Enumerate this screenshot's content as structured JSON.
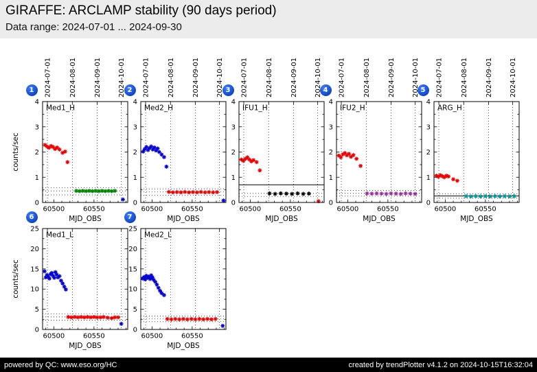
{
  "header": {
    "title": "GIRAFFE: ARCLAMP stability (90 days period)",
    "subtitle": "Data range: 2024-07-01 ... 2024-09-30"
  },
  "footer": {
    "powered_prefix": "powered by QC: ",
    "qc_link": "www.eso.org/HC",
    "created": "created by trendPlotter v4.1.2 on 2024-10-15T16:32:04"
  },
  "colors": {
    "badge_blue": "#0033aa",
    "red": "#e60000",
    "green": "#008000",
    "blue": "#0000cd",
    "black": "#000000",
    "purple": "#993399",
    "cyan": "#009999"
  },
  "axes_common": {
    "xlabel": "MJD_OBS",
    "ylabel": "counts/sec",
    "xlim": [
      60486,
      60592
    ],
    "xticks": [
      60500,
      60550
    ],
    "grid": "dotted vertical lines at month starts, dotted horizontal control limits"
  },
  "date_ticks": [
    {
      "label": "2024-07-01",
      "mjd": 60492
    },
    {
      "label": "2024-08-01",
      "mjd": 60523
    },
    {
      "label": "2024-09-01",
      "mjd": 60554
    },
    {
      "label": "2024-10-01",
      "mjd": 60584
    }
  ],
  "chart_data": [
    {
      "number": 1,
      "row": 1,
      "col": 1,
      "type": "scatter",
      "title": "Med1_H",
      "show_ylabel": true,
      "show_date_labels": true,
      "ylim": [
        0,
        4
      ],
      "yticks": [
        0,
        1,
        2,
        3,
        4
      ],
      "ref_lines_dashed": [
        0.3,
        0.46,
        0.58
      ],
      "ref_lines_solid": [],
      "series": [
        {
          "name": "red-declining",
          "color": "#e60000",
          "points": [
            [
              60489,
              2.28
            ],
            [
              60491.5,
              2.22
            ],
            [
              60494,
              2.17
            ],
            [
              60496.5,
              2.24
            ],
            [
              60499,
              2.2
            ],
            [
              60501.5,
              2.12
            ],
            [
              60504,
              2.18
            ],
            [
              60507,
              2.1
            ],
            [
              60511,
              1.97
            ],
            [
              60514,
              2.02
            ],
            [
              60517,
              1.6
            ]
          ]
        },
        {
          "name": "green-stable",
          "color": "#008000",
          "points": [
            [
              60528,
              0.46
            ],
            [
              60532,
              0.45
            ],
            [
              60536,
              0.46
            ],
            [
              60540,
              0.45
            ],
            [
              60544,
              0.46
            ],
            [
              60548,
              0.45
            ],
            [
              60552,
              0.46
            ],
            [
              60556,
              0.45
            ],
            [
              60560,
              0.46
            ],
            [
              60564,
              0.45
            ],
            [
              60568,
              0.46
            ],
            [
              60572,
              0.45
            ],
            [
              60576,
              0.46
            ]
          ]
        },
        {
          "name": "blue-outlier",
          "color": "#0000cd",
          "points": [
            [
              60586,
              0.12
            ]
          ]
        }
      ]
    },
    {
      "number": 2,
      "row": 1,
      "col": 2,
      "type": "scatter",
      "title": "Med2_H",
      "show_ylabel": false,
      "show_date_labels": true,
      "ylim": [
        0,
        4
      ],
      "yticks": [
        0,
        1,
        2,
        3,
        4
      ],
      "ref_lines_dashed": [
        0.28,
        0.42,
        0.54
      ],
      "ref_lines_solid": [],
      "series": [
        {
          "name": "blue-declining",
          "color": "#0000cd",
          "points": [
            [
              60489,
              2.02
            ],
            [
              60491,
              2.12
            ],
            [
              60493,
              2.2
            ],
            [
              60495,
              2.08
            ],
            [
              60497,
              2.16
            ],
            [
              60499,
              2.22
            ],
            [
              60501,
              2.1
            ],
            [
              60503,
              2.18
            ],
            [
              60505,
              2.06
            ],
            [
              60507,
              2.14
            ],
            [
              60509,
              2.0
            ],
            [
              60512,
              1.9
            ],
            [
              60515,
              1.8
            ],
            [
              60518,
              1.42
            ]
          ]
        },
        {
          "name": "red-stable",
          "color": "#e60000",
          "points": [
            [
              60521,
              0.42
            ],
            [
              60526,
              0.4
            ],
            [
              60531,
              0.41
            ],
            [
              60536,
              0.4
            ],
            [
              60541,
              0.42
            ],
            [
              60546,
              0.4
            ],
            [
              60551,
              0.41
            ],
            [
              60556,
              0.4
            ],
            [
              60561,
              0.42
            ],
            [
              60566,
              0.4
            ],
            [
              60571,
              0.41
            ],
            [
              60576,
              0.4
            ],
            [
              60581,
              0.41
            ]
          ]
        },
        {
          "name": "blue-outlier",
          "color": "#0000cd",
          "points": [
            [
              60589,
              0.08
            ]
          ]
        }
      ]
    },
    {
      "number": 3,
      "row": 1,
      "col": 3,
      "type": "scatter",
      "title": "IFU1_H",
      "show_ylabel": false,
      "show_date_labels": true,
      "ylim": [
        0,
        4
      ],
      "yticks": [
        0,
        1,
        2,
        3,
        4
      ],
      "ref_lines_dashed": [
        0.24,
        0.36
      ],
      "ref_lines_solid": [
        0.7
      ],
      "series": [
        {
          "name": "red-declining",
          "color": "#e60000",
          "points": [
            [
              60489,
              1.7
            ],
            [
              60491.5,
              1.65
            ],
            [
              60494,
              1.73
            ],
            [
              60496.5,
              1.79
            ],
            [
              60499,
              1.7
            ],
            [
              60501.5,
              1.63
            ],
            [
              60504,
              1.68
            ],
            [
              60508,
              1.6
            ],
            [
              60512,
              1.27
            ]
          ]
        },
        {
          "name": "black-stable",
          "color": "#000000",
          "points": [
            [
              60524,
              0.36
            ],
            [
              60531,
              0.34
            ],
            [
              60538,
              0.36
            ],
            [
              60545,
              0.35
            ],
            [
              60552,
              0.34
            ],
            [
              60559,
              0.36
            ],
            [
              60566,
              0.34
            ],
            [
              60573,
              0.35
            ]
          ]
        },
        {
          "name": "red-outlier",
          "color": "#e60000",
          "points": [
            [
              60585,
              0.05
            ]
          ]
        }
      ]
    },
    {
      "number": 4,
      "row": 1,
      "col": 4,
      "type": "scatter",
      "title": "IFU2_H",
      "show_ylabel": false,
      "show_date_labels": true,
      "ylim": [
        0,
        4
      ],
      "yticks": [
        0,
        1,
        2,
        3,
        4
      ],
      "ref_lines_dashed": [
        0.25,
        0.36,
        0.47
      ],
      "ref_lines_solid": [],
      "series": [
        {
          "name": "red-declining",
          "color": "#e60000",
          "points": [
            [
              60489,
              1.86
            ],
            [
              60491.5,
              1.79
            ],
            [
              60494,
              1.91
            ],
            [
              60496.5,
              1.96
            ],
            [
              60499,
              1.87
            ],
            [
              60501.5,
              1.93
            ],
            [
              60504,
              1.81
            ],
            [
              60507,
              1.88
            ],
            [
              60511,
              1.73
            ],
            [
              60516,
              1.45
            ]
          ]
        },
        {
          "name": "purple-stable",
          "color": "#993399",
          "points": [
            [
              60524,
              0.36
            ],
            [
              60530,
              0.35
            ],
            [
              60536,
              0.36
            ],
            [
              60542,
              0.35
            ],
            [
              60548,
              0.34
            ],
            [
              60554,
              0.36
            ],
            [
              60560,
              0.35
            ],
            [
              60566,
              0.34
            ],
            [
              60572,
              0.36
            ],
            [
              60578,
              0.35
            ],
            [
              60584,
              0.34
            ]
          ]
        }
      ]
    },
    {
      "number": 5,
      "row": 1,
      "col": 5,
      "type": "scatter",
      "title": "ARG_H",
      "show_ylabel": false,
      "show_date_labels": true,
      "ylim": [
        0,
        4
      ],
      "yticks": [
        0,
        1,
        2,
        3,
        4
      ],
      "ref_lines_dashed": [
        0.17,
        0.34
      ],
      "ref_lines_solid": [
        0.26
      ],
      "series": [
        {
          "name": "red-declining",
          "color": "#e60000",
          "points": [
            [
              60489,
              1.06
            ],
            [
              60491.5,
              1.02
            ],
            [
              60494,
              1.08
            ],
            [
              60496.5,
              1.04
            ],
            [
              60499,
              1.0
            ],
            [
              60501.5,
              1.06
            ],
            [
              60504,
              1.03
            ],
            [
              60510,
              0.92
            ],
            [
              60515,
              0.86
            ]
          ]
        },
        {
          "name": "cyan-stable",
          "color": "#009999",
          "points": [
            [
              60526,
              0.25
            ],
            [
              60532,
              0.24
            ],
            [
              60538,
              0.25
            ],
            [
              60544,
              0.24
            ],
            [
              60550,
              0.25
            ],
            [
              60556,
              0.24
            ],
            [
              60562,
              0.25
            ],
            [
              60568,
              0.24
            ],
            [
              60574,
              0.25
            ],
            [
              60580,
              0.24
            ],
            [
              60586,
              0.25
            ]
          ]
        }
      ]
    },
    {
      "number": 6,
      "row": 2,
      "col": 1,
      "type": "scatter",
      "title": "Med1_L",
      "show_ylabel": true,
      "show_date_labels": false,
      "ylim": [
        0,
        25
      ],
      "yticks": [
        0,
        5,
        10,
        15,
        20,
        25
      ],
      "ref_lines_dashed": [
        2.3,
        3.1,
        3.9
      ],
      "ref_lines_solid": [],
      "series": [
        {
          "name": "blue-declining",
          "color": "#0000cd",
          "points": [
            [
              60488.5,
              14.4
            ],
            [
              60490,
              12.9
            ],
            [
              60491.5,
              13.5
            ],
            [
              60493,
              13.1
            ],
            [
              60494.5,
              12.6
            ],
            [
              60496,
              13.7
            ],
            [
              60497.5,
              14.0
            ],
            [
              60499,
              13.3
            ],
            [
              60500.5,
              12.8
            ],
            [
              60502,
              14.2
            ],
            [
              60503.5,
              13.6
            ],
            [
              60505,
              12.9
            ],
            [
              60507,
              13.2
            ],
            [
              60509,
              12.1
            ],
            [
              60511,
              11.4
            ],
            [
              60513,
              10.6
            ],
            [
              60515,
              9.9
            ]
          ]
        },
        {
          "name": "red-stable",
          "color": "#e60000",
          "points": [
            [
              60518,
              3.1
            ],
            [
              60522,
              3.0
            ],
            [
              60526,
              3.1
            ],
            [
              60530,
              3.0
            ],
            [
              60534,
              3.1
            ],
            [
              60538,
              3.0
            ],
            [
              60542,
              3.1
            ],
            [
              60546,
              3.0
            ],
            [
              60550,
              3.1
            ],
            [
              60554,
              3.0
            ],
            [
              60558,
              3.0
            ],
            [
              60562,
              3.1
            ],
            [
              60567,
              2.9
            ],
            [
              60572,
              2.8
            ],
            [
              60576,
              3.0
            ],
            [
              60580,
              3.0
            ]
          ]
        },
        {
          "name": "blue-outlier",
          "color": "#0000cd",
          "points": [
            [
              60584,
              1.4
            ]
          ]
        }
      ]
    },
    {
      "number": 7,
      "row": 2,
      "col": 2,
      "type": "scatter",
      "title": "Med2_L",
      "show_ylabel": false,
      "show_date_labels": false,
      "ylim": [
        0,
        25
      ],
      "yticks": [
        0,
        5,
        10,
        15,
        20,
        25
      ],
      "ref_lines_dashed": [
        1.9,
        2.6,
        3.3
      ],
      "ref_lines_solid": [],
      "series": [
        {
          "name": "blue-declining",
          "color": "#0000cd",
          "points": [
            [
              60488.5,
              12.6
            ],
            [
              60490,
              13.0
            ],
            [
              60491.5,
              12.4
            ],
            [
              60493,
              13.3
            ],
            [
              60494.5,
              12.8
            ],
            [
              60496,
              13.1
            ],
            [
              60497.5,
              12.5
            ],
            [
              60499,
              13.4
            ],
            [
              60500.5,
              12.9
            ],
            [
              60502,
              12.3
            ],
            [
              60504,
              11.8
            ],
            [
              60506,
              11.1
            ],
            [
              60508,
              10.3
            ],
            [
              60510,
              9.6
            ],
            [
              60512,
              9.0
            ],
            [
              60515,
              8.5
            ]
          ]
        },
        {
          "name": "red-stable",
          "color": "#e60000",
          "points": [
            [
              60519,
              2.6
            ],
            [
              60524,
              2.5
            ],
            [
              60529,
              2.6
            ],
            [
              60534,
              2.5
            ],
            [
              60539,
              2.6
            ],
            [
              60544,
              2.5
            ],
            [
              60549,
              2.6
            ],
            [
              60554,
              2.5
            ],
            [
              60559,
              2.6
            ],
            [
              60564,
              2.5
            ],
            [
              60569,
              2.6
            ],
            [
              60574,
              2.5
            ],
            [
              60579,
              2.6
            ]
          ]
        },
        {
          "name": "blue-outlier",
          "color": "#0000cd",
          "points": [
            [
              60588,
              0.9
            ]
          ]
        }
      ]
    }
  ]
}
